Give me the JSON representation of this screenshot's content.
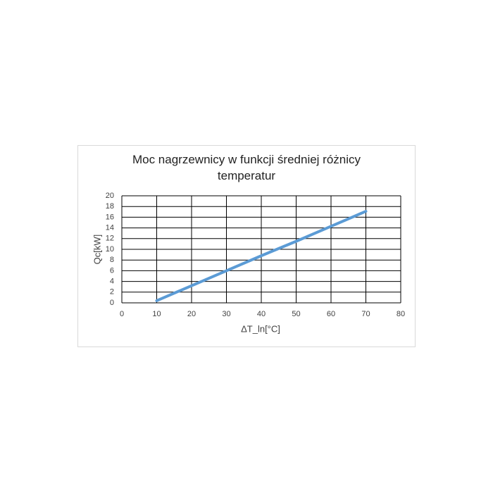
{
  "chart_data": {
    "type": "line",
    "title": "Moc nagrzewnicy w funkcji średniej różnicy temperatur",
    "xlabel": "ΔT_ln[°C]",
    "ylabel": "Qc[kW]",
    "x": [
      10,
      20,
      30,
      40,
      50,
      60,
      70
    ],
    "values": [
      0.4,
      3.2,
      6.0,
      8.8,
      11.5,
      14.3,
      17.1
    ],
    "color": "#5b9bd5",
    "xlim": [
      0,
      80
    ],
    "xticks": [
      0,
      10,
      20,
      30,
      40,
      50,
      60,
      70,
      80
    ],
    "ylim": [
      0,
      20
    ],
    "yticks": [
      0,
      2,
      4,
      6,
      8,
      10,
      12,
      14,
      16,
      18,
      20
    ],
    "grid": true
  }
}
